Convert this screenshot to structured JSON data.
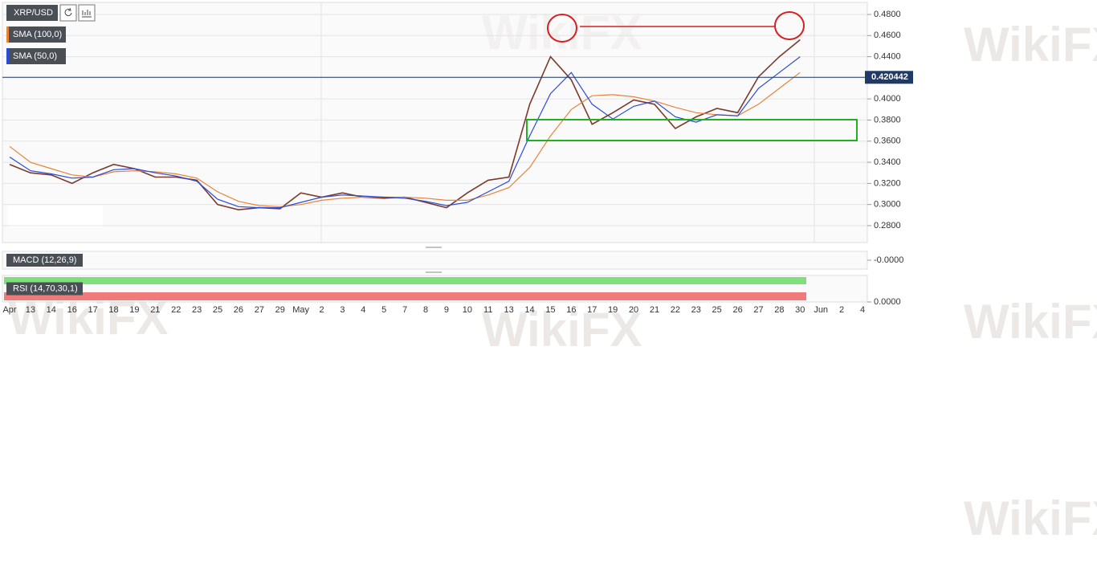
{
  "chart_data": [
    {
      "type": "line",
      "title": "XRP/USD",
      "categories": [
        "Apr",
        "13",
        "14",
        "16",
        "17",
        "18",
        "19",
        "21",
        "22",
        "23",
        "25",
        "26",
        "27",
        "29",
        "May",
        "2",
        "3",
        "4",
        "5",
        "7",
        "8",
        "9",
        "10",
        "11",
        "13",
        "14",
        "15",
        "16",
        "17",
        "19",
        "20",
        "21",
        "22",
        "23",
        "25",
        "26",
        "27",
        "28",
        "30",
        "Jun",
        "2",
        "4"
      ],
      "series": [
        {
          "color": "#7b3a2c",
          "values": [
            0.338,
            0.33,
            0.328,
            0.32,
            0.33,
            0.338,
            0.334,
            0.326,
            0.326,
            0.323,
            0.3,
            0.295,
            0.297,
            0.296,
            0.311,
            0.307,
            0.311,
            0.307,
            0.306,
            0.307,
            0.302,
            0.297,
            0.311,
            0.323,
            0.326,
            0.395,
            0.44,
            0.418,
            0.376,
            0.387,
            0.399,
            0.395,
            0.372,
            0.383,
            0.391,
            0.387,
            0.421,
            0.44,
            0.456,
            null,
            null,
            null
          ]
        },
        {
          "name": "SMA (100,0)",
          "color": "#e8833a",
          "values": [
            0.355,
            0.34,
            0.334,
            0.328,
            0.326,
            0.331,
            0.332,
            0.331,
            0.329,
            0.325,
            0.312,
            0.303,
            0.299,
            0.298,
            0.3,
            0.304,
            0.306,
            0.307,
            0.307,
            0.307,
            0.306,
            0.304,
            0.304,
            0.309,
            0.316,
            0.335,
            0.365,
            0.39,
            0.403,
            0.404,
            0.402,
            0.398,
            0.392,
            0.387,
            0.385,
            0.384,
            0.395,
            0.41,
            0.425,
            null,
            null,
            null
          ]
        },
        {
          "name": "SMA (50,0)",
          "color": "#2a4bd7",
          "values": [
            0.345,
            0.332,
            0.329,
            0.325,
            0.326,
            0.333,
            0.334,
            0.33,
            0.327,
            0.322,
            0.305,
            0.298,
            0.297,
            0.297,
            0.302,
            0.307,
            0.309,
            0.308,
            0.307,
            0.306,
            0.303,
            0.299,
            0.302,
            0.312,
            0.322,
            0.365,
            0.405,
            0.425,
            0.395,
            0.381,
            0.393,
            0.398,
            0.383,
            0.378,
            0.385,
            0.384,
            0.41,
            0.425,
            0.44,
            null,
            null,
            null
          ]
        }
      ],
      "last_price": 0.420442,
      "ylim": [
        0.264,
        0.4914
      ],
      "yticks": [
        {
          "value": 0.28,
          "label": "0.2800"
        },
        {
          "value": 0.3,
          "label": "0.3000"
        },
        {
          "value": 0.32,
          "label": "0.3200"
        },
        {
          "value": 0.34,
          "label": "0.3400"
        },
        {
          "value": 0.36,
          "label": "0.3600"
        },
        {
          "value": 0.38,
          "label": "0.3800"
        },
        {
          "value": 0.4,
          "label": "0.4000"
        },
        {
          "value": 0.42,
          "label": "0.4200"
        },
        {
          "value": 0.44,
          "label": "0.4400"
        },
        {
          "value": 0.46,
          "label": "0.4600"
        },
        {
          "value": 0.48,
          "label": "0.4800"
        }
      ],
      "grid": true
    },
    {
      "type": "indicator",
      "title": "MACD (12,26,9)",
      "ylim": [
        -0.01,
        0.01
      ],
      "yticks": [
        {
          "value": 0,
          "label": "-0.0000"
        }
      ]
    },
    {
      "type": "indicator",
      "title": "RSI (14,70,30,1)",
      "ylim": [
        0,
        100
      ],
      "yticks": [
        {
          "value": 0,
          "label": "0.0000"
        }
      ]
    }
  ],
  "watermark": "WikiFX"
}
